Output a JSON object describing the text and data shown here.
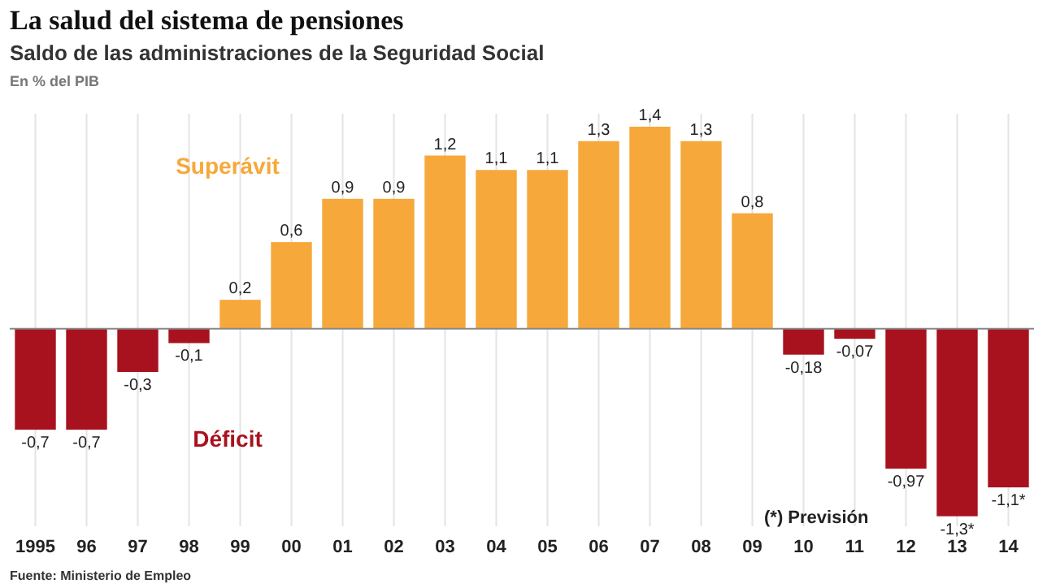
{
  "chart_data": {
    "type": "bar",
    "title": "La salud del sistema de pensiones",
    "subtitle": "Saldo de las administraciones de la Seguridad Social",
    "ylabel": "En % del PIB",
    "relative": false,
    "grid": "x",
    "categories": [
      "1995",
      "96",
      "97",
      "98",
      "99",
      "00",
      "01",
      "02",
      "03",
      "04",
      "05",
      "06",
      "07",
      "08",
      "09",
      "10",
      "11",
      "12",
      "13",
      "14"
    ],
    "values": [
      -0.7,
      -0.7,
      -0.3,
      -0.1,
      0.2,
      0.6,
      0.9,
      0.9,
      1.2,
      1.1,
      1.1,
      1.3,
      1.4,
      1.3,
      0.8,
      -0.18,
      -0.07,
      -0.97,
      -1.3,
      -1.1
    ],
    "colors": [
      "#a8121e",
      "#a8121e",
      "#a8121e",
      "#a8121e",
      "#f6a83a",
      "#f6a83a",
      "#f6a83a",
      "#f6a83a",
      "#f6a83a",
      "#f6a83a",
      "#f6a83a",
      "#f6a83a",
      "#f6a83a",
      "#f6a83a",
      "#f6a83a",
      "#a8121e",
      "#a8121e",
      "#a8121e",
      "#a8121e",
      "#a8121e"
    ],
    "value_labels": [
      "-0,7",
      "-0,7",
      "-0,3",
      "-0,1",
      "0,2",
      "0,6",
      "0,9",
      "0,9",
      "1,2",
      "1,1",
      "1,1",
      "1,3",
      "1,4",
      "1,3",
      "0,8",
      "-0,18",
      "-0,07",
      "-0,97",
      "-1,3*",
      "-1,1*"
    ],
    "annotations": [
      "Superávit",
      "Déficit",
      "(*) Previsión",
      "Fuente: Ministerio de Empleo"
    ]
  }
}
